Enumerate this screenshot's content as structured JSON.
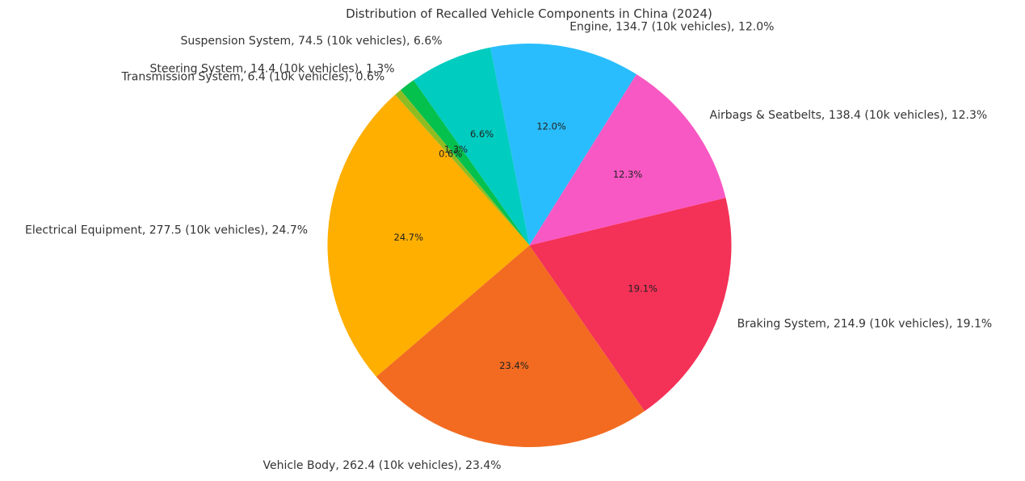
{
  "chart_data": {
    "type": "pie",
    "title": "Distribution of Recalled Vehicle Components in China (2024)",
    "unit": "10k vehicles",
    "slices": [
      {
        "label": "Engine",
        "value": 134.7,
        "percent": 12.0,
        "color": "#29BDFD",
        "outer_label": "Engine, 134.7 (10k vehicles), 12.0%",
        "pct_label": "12.0%"
      },
      {
        "label": "Suspension System",
        "value": 74.5,
        "percent": 6.6,
        "color": "#00CCC0",
        "outer_label": "Suspension System, 74.5 (10k vehicles), 6.6%",
        "pct_label": "6.6%"
      },
      {
        "label": "Steering System",
        "value": 14.4,
        "percent": 1.3,
        "color": "#04C04D",
        "outer_label": "Steering System, 14.4 (10k vehicles), 1.3%",
        "pct_label": "1.3%"
      },
      {
        "label": "Transmission System",
        "value": 6.4,
        "percent": 0.6,
        "color": "#8FBC22",
        "outer_label": "Transmission System, 6.4 (10k vehicles), 0.6%",
        "pct_label": "0.6%"
      },
      {
        "label": "Electrical Equipment",
        "value": 277.5,
        "percent": 24.7,
        "color": "#FFAF00",
        "outer_label": "Electrical Equipment, 277.5 (10k vehicles), 24.7%",
        "pct_label": "24.7%"
      },
      {
        "label": "Vehicle Body",
        "value": 262.4,
        "percent": 23.4,
        "color": "#F26B21",
        "outer_label": "Vehicle Body, 262.4 (10k vehicles), 23.4%",
        "pct_label": "23.4%"
      },
      {
        "label": "Braking System",
        "value": 214.9,
        "percent": 19.1,
        "color": "#F43157",
        "outer_label": "Braking System, 214.9 (10k vehicles), 19.1%",
        "pct_label": "19.1%"
      },
      {
        "label": "Airbags & Seatbelts",
        "value": 138.4,
        "percent": 12.3,
        "color": "#F858C3",
        "outer_label": "Airbags & Seatbelts, 138.4 (10k vehicles), 12.3%",
        "pct_label": "12.3%"
      }
    ],
    "start_angle_deg": 58,
    "direction": "counterclockwise",
    "legend": "none"
  }
}
